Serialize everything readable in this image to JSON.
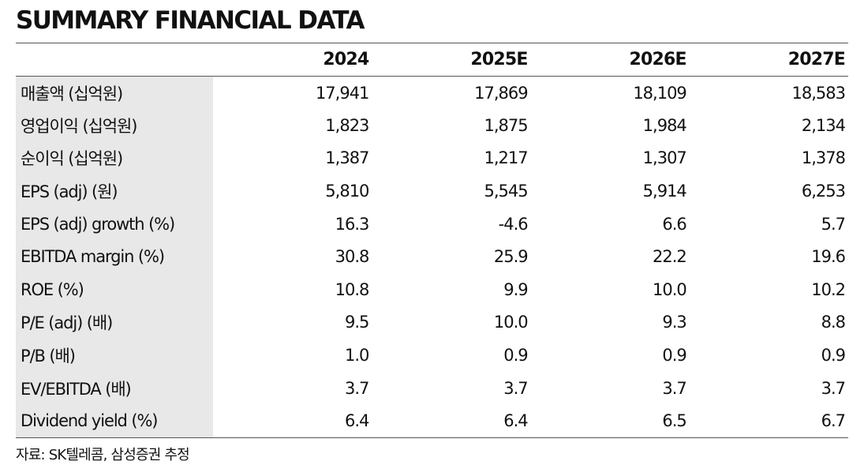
{
  "title": "SUMMARY FINANCIAL DATA",
  "header": {
    "label": "",
    "years": [
      "2024",
      "2025E",
      "2026E",
      "2027E"
    ]
  },
  "rows": [
    {
      "label": "매출액 (십억원)",
      "values": [
        "17,941",
        "17,869",
        "18,109",
        "18,583"
      ]
    },
    {
      "label": "영업이익 (십억원)",
      "values": [
        "1,823",
        "1,875",
        "1,984",
        "2,134"
      ]
    },
    {
      "label": "순이익 (십억원)",
      "values": [
        "1,387",
        "1,217",
        "1,307",
        "1,378"
      ]
    },
    {
      "label": "EPS (adj) (원)",
      "values": [
        "5,810",
        "5,545",
        "5,914",
        "6,253"
      ]
    },
    {
      "label": "EPS (adj) growth (%)",
      "values": [
        "16.3",
        "-4.6",
        "6.6",
        "5.7"
      ]
    },
    {
      "label": "EBITDA margin (%)",
      "values": [
        "30.8",
        "25.9",
        "22.2",
        "19.6"
      ]
    },
    {
      "label": "ROE (%)",
      "values": [
        "10.8",
        "9.9",
        "10.0",
        "10.2"
      ]
    },
    {
      "label": "P/E (adj) (배)",
      "values": [
        "9.5",
        "10.0",
        "9.3",
        "8.8"
      ]
    },
    {
      "label": "P/B (배)",
      "values": [
        "1.0",
        "0.9",
        "0.9",
        "0.9"
      ]
    },
    {
      "label": "EV/EBITDA (배)",
      "values": [
        "3.7",
        "3.7",
        "3.7",
        "3.7"
      ]
    },
    {
      "label": "Dividend yield (%)",
      "values": [
        "6.4",
        "6.4",
        "6.5",
        "6.7"
      ]
    }
  ],
  "source": "자료: SK텔레콤, 삼성증권 추정"
}
